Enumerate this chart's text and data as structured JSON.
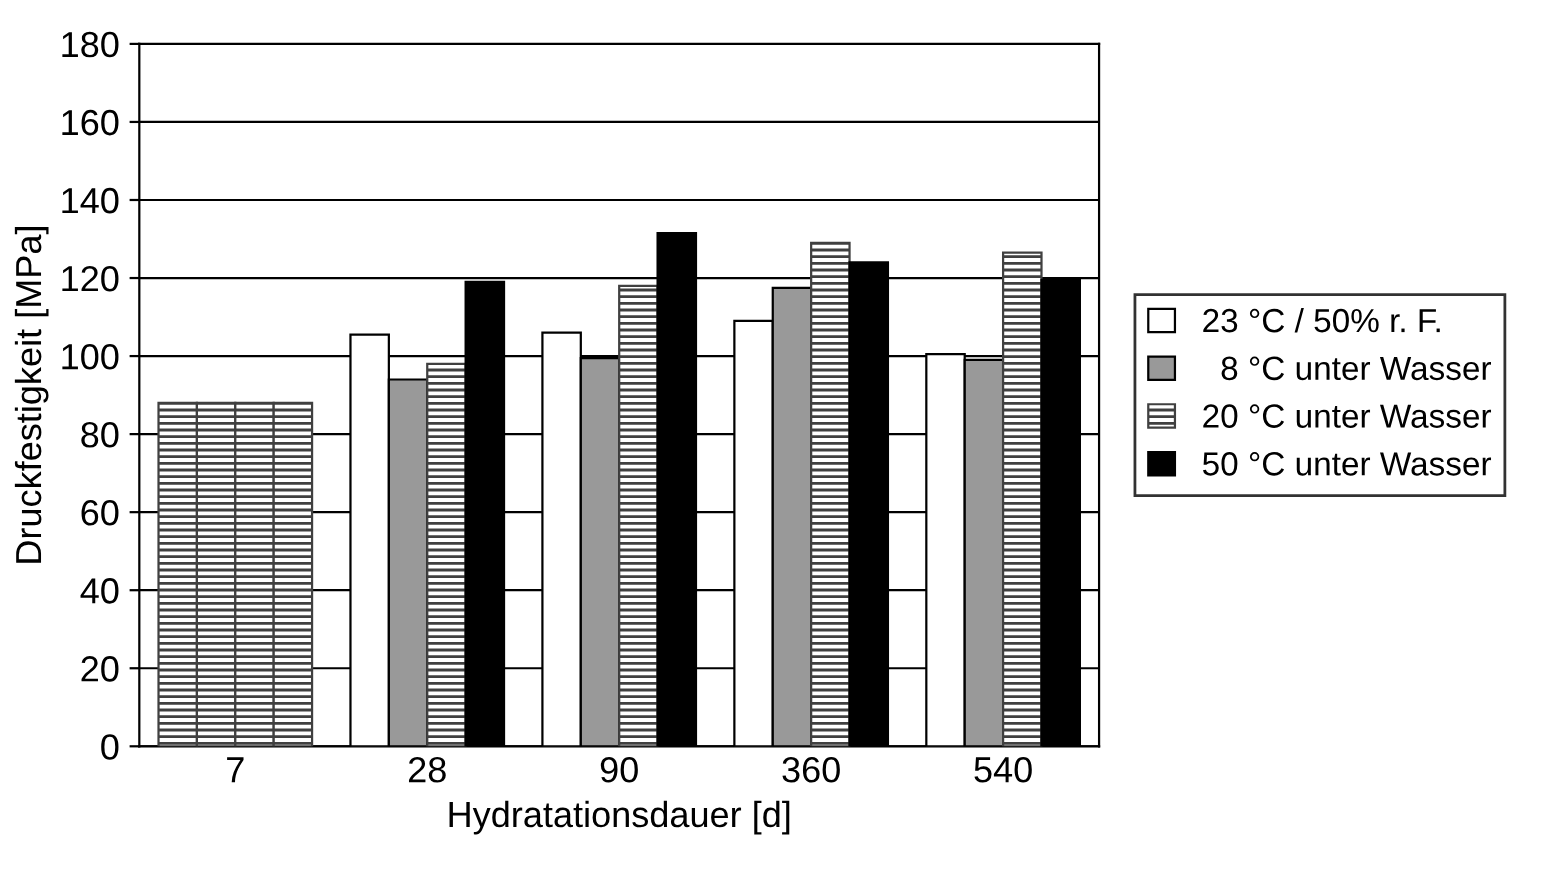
{
  "chart_data": {
    "type": "bar",
    "xlabel": "Hydratationsdauer [d]",
    "ylabel": "Druckfestigkeit [MPa]",
    "categories": [
      "7",
      "28",
      "90",
      "360",
      "540"
    ],
    "series": [
      {
        "name": "23 °C / 50% r. F.",
        "color": "#ffffff",
        "colors": [
          "#404040",
          "#ffffff",
          "#ffffff",
          "#ffffff",
          "#ffffff"
        ],
        "values": [
          88,
          105.5,
          106,
          109,
          100.5
        ]
      },
      {
        "name": "  8 °C unter Wasser",
        "color": "#999999",
        "colors": [
          "#404040",
          "#999999",
          "#999999",
          "#999999",
          "#999999"
        ],
        "values": [
          88,
          94,
          99.5,
          117.5,
          99
        ]
      },
      {
        "name": "20 °C unter Wasser",
        "color": "#404040",
        "values": [
          88,
          98,
          118,
          129,
          126.5
        ]
      },
      {
        "name": "50 °C unter Wasser",
        "color": "#000000",
        "colors": [
          "#404040",
          "#000000",
          "#000000",
          "#000000",
          "#000000"
        ],
        "values": [
          88,
          119,
          131.5,
          124,
          119.5
        ]
      }
    ],
    "ylim": [
      0,
      180
    ],
    "yticks": [
      0,
      20,
      40,
      60,
      80,
      100,
      120,
      140,
      160,
      180
    ],
    "grid": "y",
    "legend": "right"
  }
}
